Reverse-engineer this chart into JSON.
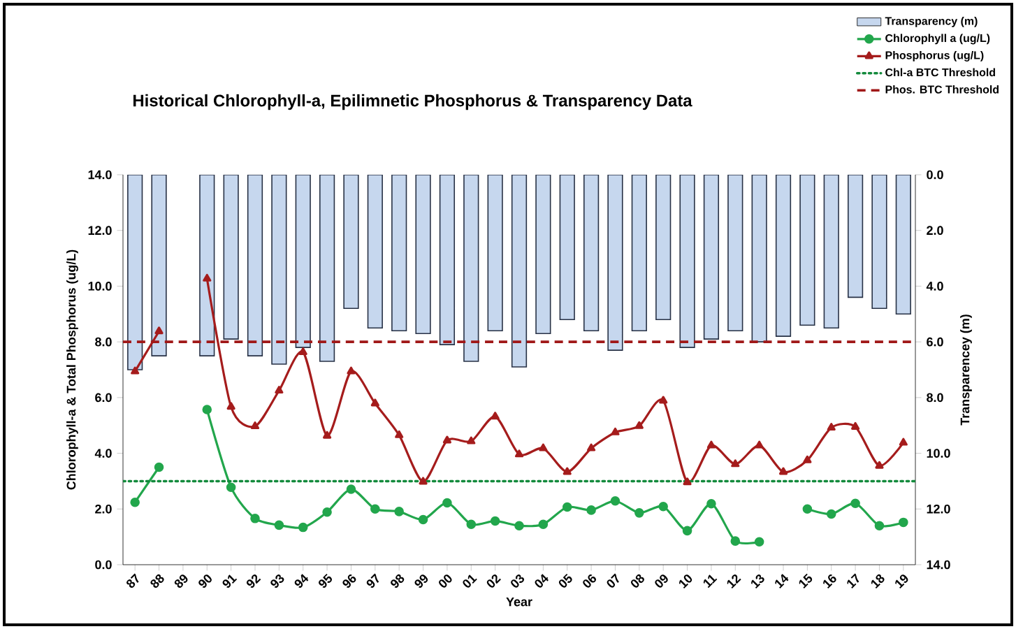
{
  "chart_data": {
    "type": "line",
    "title": "Historical Chlorophyll-a,  Epilimnetic Phosphorus  & Transparency  Data",
    "xlabel": "Year",
    "ylabel": "Chlorophyll-a & Total Phosphorus (ug/L)",
    "y2label": "Transparencey (m)",
    "categories": [
      "87",
      "88",
      "89",
      "90",
      "91",
      "92",
      "93",
      "94",
      "95",
      "96",
      "97",
      "98",
      "99",
      "00",
      "01",
      "02",
      "03",
      "04",
      "05",
      "06",
      "07",
      "08",
      "09",
      "10",
      "11",
      "12",
      "13",
      "14",
      "15",
      "16",
      "17",
      "18",
      "19"
    ],
    "series": [
      {
        "name": "Transparency (m)",
        "type": "bar",
        "axis": "y2",
        "color": "#c6d7ee",
        "values": [
          7.0,
          6.5,
          null,
          6.5,
          5.9,
          6.5,
          6.8,
          6.2,
          6.7,
          4.8,
          5.5,
          5.6,
          5.7,
          6.1,
          6.7,
          5.6,
          6.9,
          5.7,
          5.2,
          5.6,
          6.3,
          5.6,
          5.2,
          6.2,
          5.9,
          5.6,
          6.0,
          5.8,
          5.4,
          5.5,
          4.4,
          4.8,
          5.0
        ]
      },
      {
        "name": "Chlorophyll a (ug/L)",
        "marker": "circle",
        "color": "#22a64c",
        "values": [
          2.24,
          3.5,
          null,
          5.57,
          2.78,
          1.66,
          1.42,
          1.34,
          1.89,
          2.71,
          2.0,
          1.91,
          1.62,
          2.22,
          1.45,
          1.57,
          1.4,
          1.45,
          2.07,
          1.96,
          2.29,
          1.86,
          2.09,
          1.22,
          2.19,
          0.85,
          0.82,
          null,
          2.0,
          1.82,
          2.2,
          1.4,
          1.52
        ]
      },
      {
        "name": "Phosphorus (ug/L)",
        "marker": "triangle",
        "color": "#a51c1c",
        "values": [
          6.94,
          8.38,
          null,
          10.27,
          5.67,
          4.97,
          6.25,
          7.63,
          4.63,
          6.94,
          5.79,
          4.65,
          2.98,
          4.46,
          4.43,
          5.32,
          3.96,
          4.18,
          3.33,
          4.18,
          4.75,
          4.98,
          5.89,
          2.96,
          4.28,
          3.61,
          4.28,
          3.33,
          3.75,
          4.92,
          4.95,
          3.55,
          4.38
        ]
      }
    ],
    "ref_lines": [
      {
        "axis": "y",
        "value": 3,
        "label": "Chl-a BTC Threshold",
        "color": "#138a3c",
        "line_style": "dotted"
      },
      {
        "axis": "y",
        "value": 8,
        "label": "Phos. BTC Threshold",
        "color": "#a01818",
        "line_style": "dashed"
      }
    ],
    "ylim": [
      0,
      14
    ],
    "yticks": [
      {
        "value": 0,
        "label": "0.0"
      },
      {
        "value": 2,
        "label": "2.0"
      },
      {
        "value": 4,
        "label": "4.0"
      },
      {
        "value": 6,
        "label": "6.0"
      },
      {
        "value": 8,
        "label": "8.0"
      },
      {
        "value": 10,
        "label": "10.0"
      },
      {
        "value": 12,
        "label": "12.0"
      },
      {
        "value": 14,
        "label": "14.0"
      }
    ],
    "y2lim": [
      14,
      0
    ],
    "y2ticks": [
      {
        "value": 0,
        "label": "0.0"
      },
      {
        "value": 2,
        "label": "2.0"
      },
      {
        "value": 4,
        "label": "4.0"
      },
      {
        "value": 6,
        "label": "6.0"
      },
      {
        "value": 8,
        "label": "8.0"
      },
      {
        "value": 10,
        "label": "10.0"
      },
      {
        "value": 12,
        "label": "12.0"
      },
      {
        "value": 14,
        "label": "14.0"
      }
    ],
    "legend": "top right"
  }
}
